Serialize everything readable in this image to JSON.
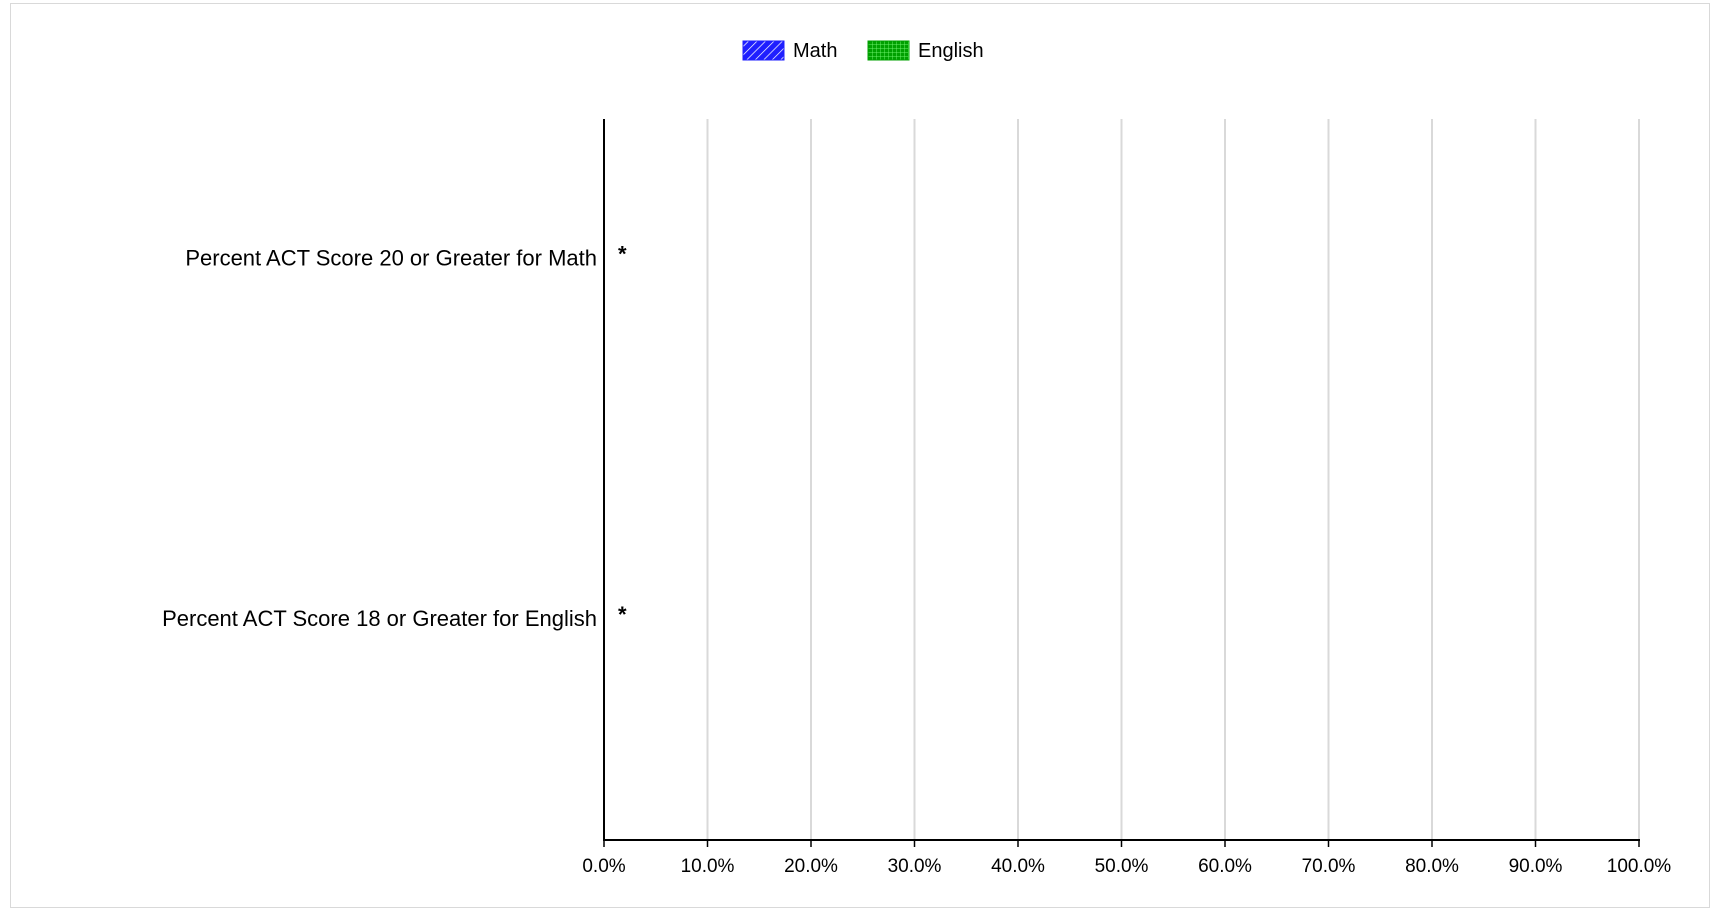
{
  "chart_data": {
    "type": "bar",
    "orientation": "horizontal",
    "categories": [
      "Percent ACT Score 20 or Greater for Math",
      "Percent ACT Score 18 or Greater for English"
    ],
    "series": [
      {
        "name": "Math",
        "color": "#1f1fff",
        "pattern": "diagonal-hatch",
        "values": [
          null,
          null
        ]
      },
      {
        "name": "English",
        "color": "#00a000",
        "pattern": "grid",
        "values": [
          null,
          null
        ]
      }
    ],
    "value_labels": [
      "*",
      "*"
    ],
    "xlim": [
      0,
      100
    ],
    "xticks": [
      "0.0%",
      "10.0%",
      "20.0%",
      "30.0%",
      "40.0%",
      "50.0%",
      "60.0%",
      "70.0%",
      "80.0%",
      "90.0%",
      "100.0%"
    ],
    "tick_values": [
      0,
      10,
      20,
      30,
      40,
      50,
      60,
      70,
      80,
      90,
      100
    ],
    "grid": true,
    "legend_position": "top-center",
    "title": "",
    "xlabel": "",
    "ylabel": ""
  }
}
